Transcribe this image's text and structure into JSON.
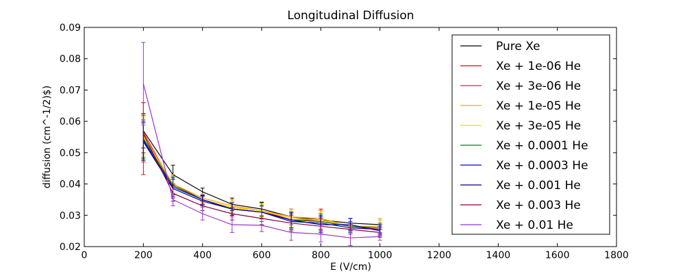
{
  "chart_data": {
    "type": "line",
    "title": "Longitudinal Diffusion",
    "xlabel": "E (V/cm)",
    "ylabel": "diffusion (cm^-1/2)$)",
    "xlim": [
      0,
      1800
    ],
    "ylim": [
      0.02,
      0.09
    ],
    "xticks": [
      "0",
      "200",
      "400",
      "600",
      "800",
      "1000",
      "1200",
      "1400",
      "1600",
      "1800"
    ],
    "yticks": [
      "0.02",
      "0.03",
      "0.04",
      "0.05",
      "0.06",
      "0.07",
      "0.08",
      "0.09"
    ],
    "grid": false,
    "legend_position": "top-right",
    "x": [
      200,
      300,
      400,
      500,
      600,
      700,
      800,
      900,
      1000
    ],
    "series": [
      {
        "name": "Pure Xe",
        "color": "#000000",
        "values": [
          0.057,
          0.043,
          0.0375,
          0.0335,
          0.032,
          0.0295,
          0.0285,
          0.0275,
          0.027
        ],
        "errors": [
          0.0055,
          0.003,
          0.0012,
          0.002,
          0.0022,
          0.0025,
          0.003,
          0.0015,
          0.0015
        ]
      },
      {
        "name": "Xe + 1e-06 He",
        "color": "#dd0000",
        "values": [
          0.0545,
          0.04,
          0.035,
          0.032,
          0.031,
          0.0285,
          0.028,
          0.0265,
          0.0255
        ],
        "errors": [
          0.0115,
          0.003,
          0.0015,
          0.002,
          0.002,
          0.0025,
          0.004,
          0.0015,
          0.0015
        ]
      },
      {
        "name": "Xe + 3e-06 He",
        "color": "#ff1a1a",
        "values": [
          0.0565,
          0.0395,
          0.035,
          0.0325,
          0.0315,
          0.0285,
          0.0285,
          0.0265,
          0.0255
        ],
        "errors": [
          0.0095,
          0.003,
          0.0015,
          0.002,
          0.002,
          0.0025,
          0.003,
          0.0015,
          0.0015
        ]
      },
      {
        "name": "Xe + 1e-05 He",
        "color": "#ffa500",
        "values": [
          0.0555,
          0.04,
          0.0355,
          0.033,
          0.0315,
          0.0295,
          0.029,
          0.0265,
          0.0265
        ],
        "errors": [
          0.006,
          0.003,
          0.0015,
          0.002,
          0.002,
          0.0025,
          0.0025,
          0.0015,
          0.0025
        ]
      },
      {
        "name": "Xe + 3e-05 He",
        "color": "#ffd700",
        "values": [
          0.055,
          0.0395,
          0.035,
          0.0325,
          0.0315,
          0.029,
          0.0285,
          0.0265,
          0.026
        ],
        "errors": [
          0.006,
          0.003,
          0.0015,
          0.002,
          0.002,
          0.0025,
          0.0025,
          0.0015,
          0.0025
        ]
      },
      {
        "name": "Xe + 0.0001 He",
        "color": "#008000",
        "values": [
          0.0545,
          0.0395,
          0.035,
          0.032,
          0.031,
          0.0285,
          0.028,
          0.0265,
          0.026
        ],
        "errors": [
          0.006,
          0.003,
          0.0015,
          0.002,
          0.003,
          0.0025,
          0.0025,
          0.0015,
          0.0015
        ]
      },
      {
        "name": "Xe + 0.0003 He",
        "color": "#0000cc",
        "values": [
          0.054,
          0.039,
          0.035,
          0.032,
          0.031,
          0.0285,
          0.027,
          0.027,
          0.025
        ],
        "errors": [
          0.006,
          0.003,
          0.0015,
          0.002,
          0.002,
          0.0025,
          0.0025,
          0.002,
          0.0015
        ]
      },
      {
        "name": "Xe + 0.001 He",
        "color": "#000080",
        "values": [
          0.0535,
          0.0385,
          0.0345,
          0.032,
          0.031,
          0.028,
          0.0275,
          0.026,
          0.0255
        ],
        "errors": [
          0.006,
          0.003,
          0.0015,
          0.002,
          0.002,
          0.0025,
          0.0025,
          0.0015,
          0.0015
        ]
      },
      {
        "name": "Xe + 0.003 He",
        "color": "#800040",
        "values": [
          0.056,
          0.037,
          0.033,
          0.0305,
          0.029,
          0.0275,
          0.0265,
          0.0255,
          0.0245
        ],
        "errors": [
          0.006,
          0.0025,
          0.0015,
          0.002,
          0.002,
          0.0025,
          0.0025,
          0.0015,
          0.0015
        ]
      },
      {
        "name": "Xe + 0.01 He",
        "color": "#9932cc",
        "values": [
          0.072,
          0.035,
          0.0305,
          0.027,
          0.0268,
          0.0245,
          0.024,
          0.0228,
          0.0232
        ],
        "errors": [
          0.0132,
          0.002,
          0.002,
          0.0025,
          0.002,
          0.0025,
          0.0025,
          0.0025,
          0.0012
        ]
      }
    ]
  }
}
